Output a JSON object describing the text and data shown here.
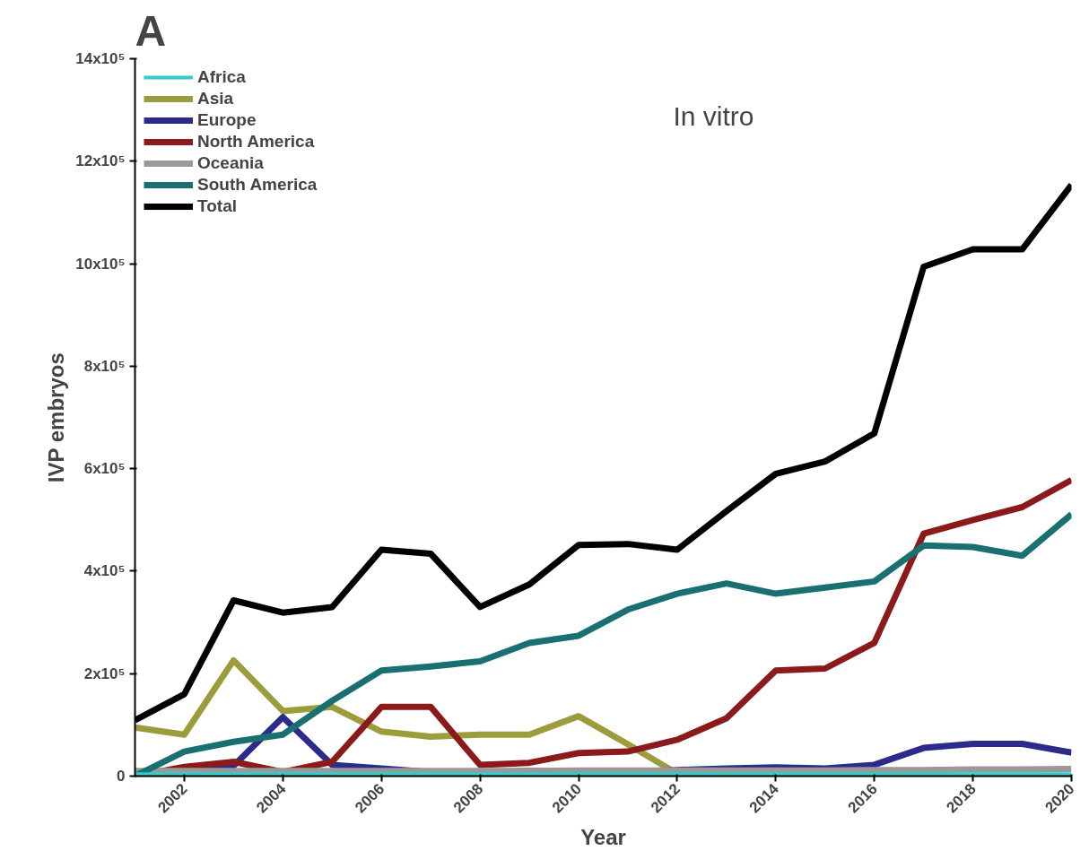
{
  "chart_data": {
    "type": "line",
    "title": "A",
    "xlabel": "Year",
    "ylabel": "IVP embryos",
    "annotations": [
      "In vitro"
    ],
    "x": [
      2001,
      2002,
      2003,
      2004,
      2005,
      2006,
      2007,
      2008,
      2009,
      2010,
      2011,
      2012,
      2013,
      2014,
      2015,
      2016,
      2017,
      2018,
      2019,
      2020
    ],
    "xlim": [
      2001,
      2020
    ],
    "xticks": [
      2002,
      2004,
      2006,
      2008,
      2010,
      2012,
      2014,
      2016,
      2018,
      2020
    ],
    "ylim": [
      0,
      1400000
    ],
    "yticks": [
      0,
      {
        "value": 200000,
        "label": "2x10⁵"
      },
      {
        "value": 400000,
        "label": "4x10⁵"
      },
      {
        "value": 600000,
        "label": "6x10⁵"
      },
      {
        "value": 800000,
        "label": "8x10⁵"
      },
      {
        "value": 1000000,
        "label": "10x10⁵"
      },
      {
        "value": 1200000,
        "label": "12x10⁵"
      },
      {
        "value": 1400000,
        "label": "14x10⁵"
      }
    ],
    "grid": false,
    "legend": "top left",
    "marker": "none",
    "line_style": "solid",
    "series": [
      {
        "name": "Africa",
        "color": "#33cccc",
        "values": [
          4000,
          4000,
          4000,
          4000,
          4000,
          4000,
          4000,
          4000,
          4000,
          4000,
          4000,
          4000,
          4000,
          4000,
          4000,
          4000,
          4000,
          4000,
          4000,
          4000
        ]
      },
      {
        "name": "Asia",
        "color": "#9c9c3c",
        "values": [
          95000,
          81000,
          226000,
          127000,
          135000,
          87000,
          77000,
          81000,
          81000,
          117000,
          62000,
          5000,
          null,
          null,
          null,
          null,
          null,
          null,
          null,
          null
        ]
      },
      {
        "name": "Europe",
        "color": "#2b2b8c",
        "values": [
          0,
          10000,
          20000,
          115000,
          22000,
          15000,
          8000,
          8000,
          10000,
          8000,
          6000,
          12000,
          15000,
          17000,
          15000,
          22000,
          55000,
          63000,
          63000,
          46000
        ]
      },
      {
        "name": "North America",
        "color": "#8b1a1a",
        "values": [
          0,
          18000,
          28000,
          8000,
          28000,
          135000,
          135000,
          22000,
          26000,
          45000,
          48000,
          71000,
          113000,
          206000,
          210000,
          260000,
          473000,
          500000,
          525000,
          578000
        ]
      },
      {
        "name": "Oceania",
        "color": "#999999",
        "values": [
          10000,
          10000,
          10000,
          10000,
          10000,
          10000,
          10000,
          10000,
          10000,
          11000,
          11000,
          11000,
          11000,
          11000,
          11000,
          12000,
          12000,
          13000,
          13000,
          14000
        ]
      },
      {
        "name": "South America",
        "color": "#1a7070",
        "values": [
          0,
          48000,
          67000,
          81000,
          147000,
          206000,
          214000,
          224000,
          260000,
          274000,
          325000,
          356000,
          376000,
          356000,
          368000,
          380000,
          450000,
          447000,
          430000,
          511000
        ]
      },
      {
        "name": "Total",
        "color": "#000000",
        "values": [
          109000,
          160000,
          343000,
          319000,
          330000,
          442000,
          434000,
          330000,
          374000,
          451000,
          453000,
          442000,
          517000,
          590000,
          614000,
          669000,
          994000,
          1028000,
          1028000,
          1154000
        ]
      }
    ]
  }
}
